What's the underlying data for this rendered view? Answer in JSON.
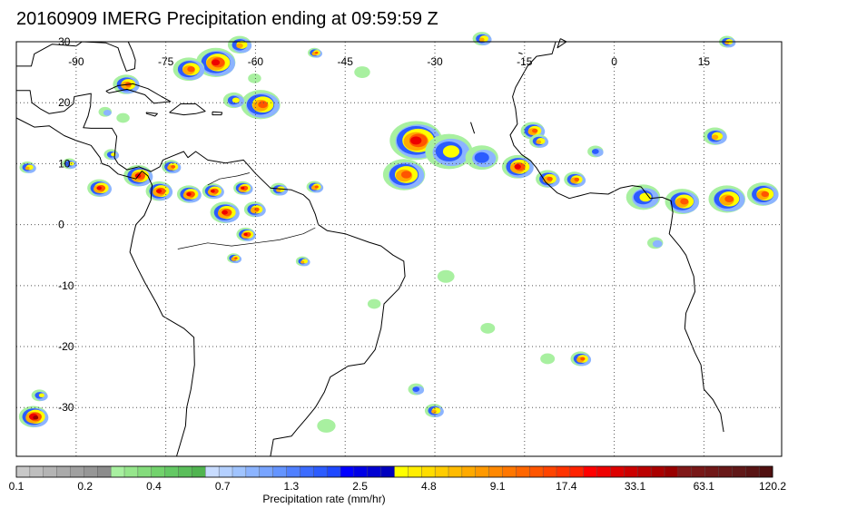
{
  "title": "20160909 IMERG Precipitation ending at 09:59:59 Z",
  "map": {
    "lon_min": -100,
    "lon_max": 28,
    "lat_min": -38,
    "lat_max": 30,
    "lon_ticks": [
      -90,
      -75,
      -60,
      -45,
      -30,
      -15,
      0,
      15
    ],
    "lon_tick_labels": [
      "-90",
      "-75",
      "-60",
      "-45",
      "-30",
      "-15",
      "0",
      "15"
    ],
    "lat_ticks": [
      30,
      20,
      10,
      0,
      -10,
      -20,
      -30
    ],
    "lat_tick_labels": [
      "30",
      "20",
      "10",
      "0",
      "-10",
      "-20",
      "-30"
    ],
    "grid": true,
    "coast_color": "#000000",
    "precip_cells": [
      {
        "lon": -66.5,
        "lat": 26.6,
        "r": 3,
        "level": 17.4
      },
      {
        "lon": -71,
        "lat": 25.5,
        "r": 2.4,
        "level": 9.1
      },
      {
        "lon": -62.5,
        "lat": 29.5,
        "r": 1.8,
        "level": 4.8
      },
      {
        "lon": -81.5,
        "lat": 23,
        "r": 2,
        "level": 9.1
      },
      {
        "lon": -59,
        "lat": 19.7,
        "r": 3,
        "level": 9.1
      },
      {
        "lon": -63.5,
        "lat": 20.4,
        "r": 1.6,
        "level": 2.5
      },
      {
        "lon": -33,
        "lat": 13.8,
        "r": 4,
        "level": 17.4
      },
      {
        "lon": -35,
        "lat": 8.2,
        "r": 3.2,
        "level": 9.1
      },
      {
        "lon": -27.5,
        "lat": 12,
        "r": 3.6,
        "level": 2.5
      },
      {
        "lon": -22,
        "lat": 11,
        "r": 2.5,
        "level": 1.3
      },
      {
        "lon": -16,
        "lat": 9.5,
        "r": 2.4,
        "level": 17.4
      },
      {
        "lon": -11,
        "lat": 7.5,
        "r": 1.8,
        "level": 9.1
      },
      {
        "lon": -6.5,
        "lat": 7.4,
        "r": 1.6,
        "level": 9.1
      },
      {
        "lon": -13.5,
        "lat": 15.4,
        "r": 1.8,
        "level": 9.1
      },
      {
        "lon": -12.5,
        "lat": 13.7,
        "r": 1.4,
        "level": 4.8
      },
      {
        "lon": -3,
        "lat": 12,
        "r": 1.2,
        "level": 1.3
      },
      {
        "lon": 17,
        "lat": 14.5,
        "r": 1.8,
        "level": 4.8
      },
      {
        "lon": 5,
        "lat": 4.5,
        "r": 2.6,
        "level": 2.5
      },
      {
        "lon": 11.5,
        "lat": 3.8,
        "r": 2.6,
        "level": 9.1
      },
      {
        "lon": 19,
        "lat": 4.2,
        "r": 2.8,
        "level": 9.1
      },
      {
        "lon": 25,
        "lat": 5,
        "r": 2.4,
        "level": 9.1
      },
      {
        "lon": -86,
        "lat": 6,
        "r": 1.8,
        "level": 17.4
      },
      {
        "lon": -79.5,
        "lat": 8,
        "r": 2.2,
        "level": 17.4
      },
      {
        "lon": -76,
        "lat": 5.5,
        "r": 2,
        "level": 17.4
      },
      {
        "lon": -74,
        "lat": 9.5,
        "r": 1.4,
        "level": 9.1
      },
      {
        "lon": -71,
        "lat": 5,
        "r": 1.8,
        "level": 17.4
      },
      {
        "lon": -67,
        "lat": 5.5,
        "r": 1.6,
        "level": 17.4
      },
      {
        "lon": -62,
        "lat": 6,
        "r": 1.4,
        "level": 17.4
      },
      {
        "lon": -65,
        "lat": 2,
        "r": 2.2,
        "level": 17.4
      },
      {
        "lon": -60,
        "lat": 2.5,
        "r": 1.6,
        "level": 9.1
      },
      {
        "lon": -61.5,
        "lat": -1.6,
        "r": 1.4,
        "level": 17.4
      },
      {
        "lon": -63.5,
        "lat": -5.5,
        "r": 1,
        "level": 9.1
      },
      {
        "lon": -52,
        "lat": -6,
        "r": 1,
        "level": 4.8
      },
      {
        "lon": -56,
        "lat": 5.8,
        "r": 1.3,
        "level": 4.8
      },
      {
        "lon": -50,
        "lat": 6.2,
        "r": 1.2,
        "level": 9.1
      },
      {
        "lon": -98,
        "lat": 9.4,
        "r": 1.2,
        "level": 4.8
      },
      {
        "lon": -91,
        "lat": 10,
        "r": 1.1,
        "level": 2.5
      },
      {
        "lon": -84,
        "lat": 11.5,
        "r": 1.1,
        "level": 2.5
      },
      {
        "lon": -5.5,
        "lat": -22,
        "r": 1.5,
        "level": 9.1
      },
      {
        "lon": -97,
        "lat": -31.5,
        "r": 2.2,
        "level": 33.1
      },
      {
        "lon": -96,
        "lat": -28,
        "r": 1.2,
        "level": 2.5
      },
      {
        "lon": -30,
        "lat": -30.5,
        "r": 1.4,
        "level": 4.8
      },
      {
        "lon": -33,
        "lat": -27,
        "r": 1.2,
        "level": 1.3
      },
      {
        "lon": -82,
        "lat": 17.5,
        "r": 1,
        "level": 0.4
      },
      {
        "lon": -85,
        "lat": 18.5,
        "r": 1,
        "level": 0.7
      },
      {
        "lon": -28,
        "lat": -8.5,
        "r": 1.3,
        "level": 0.4
      },
      {
        "lon": -40,
        "lat": -13,
        "r": 1,
        "level": 0.4
      },
      {
        "lon": -21,
        "lat": -17,
        "r": 1.1,
        "level": 0.4
      },
      {
        "lon": 7,
        "lat": -3,
        "r": 1.2,
        "level": 0.7
      },
      {
        "lon": -60,
        "lat": 24,
        "r": 1,
        "level": 0.4
      },
      {
        "lon": -42,
        "lat": 25,
        "r": 1.2,
        "level": 0.4
      },
      {
        "lon": -50,
        "lat": 28.2,
        "r": 1,
        "level": 9.1
      },
      {
        "lon": -22,
        "lat": 30.5,
        "r": 1.4,
        "level": 4.8
      },
      {
        "lon": 19,
        "lat": 30,
        "r": 1.2,
        "level": 4.8
      },
      {
        "lon": -48,
        "lat": -33,
        "r": 1.4,
        "level": 0.4
      },
      {
        "lon": -11,
        "lat": -22,
        "r": 1.1,
        "level": 0.4
      }
    ]
  },
  "colorbar": {
    "title": "Precipitation rate (mm/hr)",
    "labels": [
      "0.1",
      "0.2",
      "0.4",
      "0.7",
      "1.3",
      "2.5",
      "4.8",
      "9.1",
      "17.4",
      "33.1",
      "63.1",
      "120.2"
    ],
    "colors": [
      "#c8c8c8",
      "#bebebe",
      "#b4b4b4",
      "#aaaaaa",
      "#a0a0a0",
      "#969696",
      "#8c8c8c",
      "#a8f0a0",
      "#96e68c",
      "#84dc7c",
      "#72d26c",
      "#64c864",
      "#5abe5a",
      "#50b450",
      "#c8dcff",
      "#b4d0ff",
      "#a0c4ff",
      "#8cb4ff",
      "#78a4ff",
      "#6494ff",
      "#5080ff",
      "#3c6cff",
      "#2c5cff",
      "#1e48ff",
      "#0000ff",
      "#0000e6",
      "#0000d2",
      "#0000be",
      "#ffff00",
      "#ffee00",
      "#ffdd00",
      "#ffcc00",
      "#ffbb00",
      "#ffaa00",
      "#ff9900",
      "#ff8800",
      "#ff7700",
      "#ff6600",
      "#ff5500",
      "#ff4400",
      "#ff3300",
      "#ff2200",
      "#ff0000",
      "#ee0000",
      "#dd0000",
      "#cc0000",
      "#bb0000",
      "#aa0000",
      "#990000",
      "#801818",
      "#781818",
      "#701818",
      "#681818",
      "#601818",
      "#581414",
      "#501010"
    ]
  }
}
